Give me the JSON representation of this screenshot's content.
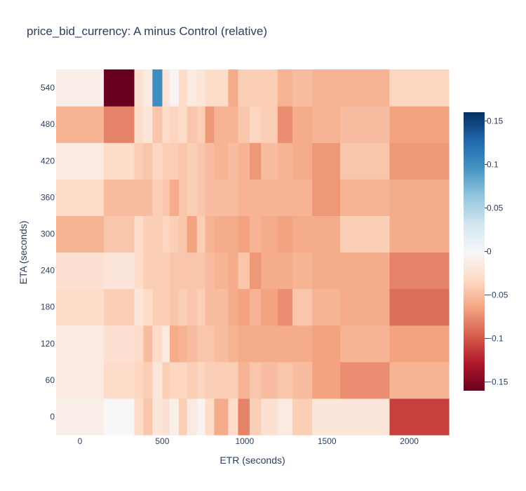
{
  "chart_data": {
    "type": "heatmap",
    "title": "price_bid_currency: A minus Control (relative)",
    "xlabel": "ETR (seconds)",
    "ylabel": "ETA (seconds)",
    "xlim": [
      -145,
      2240
    ],
    "ylim": [
      -30,
      570
    ],
    "x_ticks": [
      0,
      500,
      1000,
      1500,
      2000
    ],
    "x_tick_labels": [
      "0",
      "500",
      "1000",
      "1500",
      "2000"
    ],
    "y_ticks": [
      0,
      60,
      120,
      180,
      240,
      300,
      360,
      420,
      480,
      540
    ],
    "y_tick_labels": [
      "0",
      "60",
      "120",
      "180",
      "240",
      "300",
      "360",
      "420",
      "480",
      "540"
    ],
    "colorscale": "RdBu",
    "zmin": -0.16,
    "zmax": 0.16,
    "colorbar_ticks": [
      0.15,
      0.1,
      0.05,
      0,
      -0.05,
      -0.1,
      -0.15
    ],
    "colorbar_tick_labels": [
      "0.15",
      "0.1",
      "0.05",
      "0",
      "−0.05",
      "−0.1",
      "−0.15"
    ],
    "x_edges": [
      -145,
      145,
      330,
      385,
      440,
      500,
      545,
      600,
      650,
      710,
      760,
      815,
      900,
      960,
      1030,
      1100,
      1200,
      1290,
      1410,
      1580,
      1880,
      2240
    ],
    "y_edges": [
      -30,
      30,
      90,
      150,
      210,
      270,
      330,
      390,
      450,
      510,
      570
    ],
    "z": [
      [
        -0.01,
        0.0,
        -0.03,
        -0.045,
        -0.02,
        -0.025,
        -0.01,
        -0.04,
        -0.015,
        -0.005,
        -0.03,
        -0.06,
        -0.03,
        -0.08,
        -0.04,
        -0.025,
        -0.015,
        -0.04,
        -0.02,
        -0.02,
        -0.11
      ],
      [
        -0.015,
        -0.03,
        -0.035,
        -0.04,
        -0.02,
        -0.04,
        -0.035,
        -0.035,
        -0.04,
        -0.035,
        -0.04,
        -0.04,
        -0.04,
        -0.055,
        -0.045,
        -0.05,
        -0.045,
        -0.05,
        -0.065,
        -0.075,
        -0.055
      ],
      [
        -0.015,
        -0.025,
        -0.03,
        -0.05,
        -0.03,
        -0.015,
        -0.06,
        -0.055,
        -0.05,
        -0.045,
        -0.045,
        -0.05,
        -0.055,
        -0.06,
        -0.06,
        -0.06,
        -0.06,
        -0.06,
        -0.065,
        -0.055,
        -0.065
      ],
      [
        -0.03,
        -0.04,
        -0.02,
        -0.03,
        -0.04,
        -0.04,
        -0.045,
        -0.04,
        -0.045,
        -0.04,
        -0.05,
        -0.05,
        -0.06,
        -0.065,
        -0.055,
        -0.065,
        -0.075,
        -0.045,
        -0.055,
        -0.06,
        -0.09
      ],
      [
        -0.025,
        -0.02,
        -0.03,
        -0.04,
        -0.04,
        -0.04,
        -0.045,
        -0.045,
        -0.045,
        -0.045,
        -0.05,
        -0.055,
        -0.06,
        -0.045,
        -0.07,
        -0.06,
        -0.06,
        -0.055,
        -0.06,
        -0.06,
        -0.08
      ],
      [
        -0.055,
        -0.045,
        -0.03,
        -0.04,
        -0.04,
        -0.035,
        -0.04,
        -0.045,
        -0.065,
        -0.04,
        -0.055,
        -0.06,
        -0.06,
        -0.065,
        -0.055,
        -0.06,
        -0.065,
        -0.06,
        -0.06,
        -0.04,
        -0.06
      ],
      [
        -0.03,
        -0.05,
        -0.05,
        -0.05,
        -0.04,
        -0.045,
        -0.06,
        -0.045,
        -0.04,
        -0.045,
        -0.05,
        -0.05,
        -0.05,
        -0.055,
        -0.055,
        -0.055,
        -0.055,
        -0.055,
        -0.07,
        -0.055,
        -0.06
      ],
      [
        -0.015,
        -0.03,
        -0.04,
        -0.045,
        -0.035,
        -0.04,
        -0.04,
        -0.045,
        -0.04,
        -0.045,
        -0.05,
        -0.055,
        -0.05,
        -0.055,
        -0.07,
        -0.05,
        -0.055,
        -0.06,
        -0.07,
        -0.045,
        -0.07
      ],
      [
        -0.055,
        -0.08,
        -0.03,
        -0.02,
        -0.045,
        -0.03,
        -0.035,
        -0.03,
        -0.045,
        -0.04,
        -0.07,
        -0.055,
        -0.055,
        -0.045,
        -0.035,
        -0.04,
        -0.075,
        -0.06,
        -0.055,
        -0.05,
        -0.065
      ],
      [
        -0.01,
        -0.16,
        -0.025,
        -0.015,
        0.1,
        -0.02,
        -0.005,
        -0.03,
        -0.015,
        -0.02,
        -0.03,
        -0.03,
        -0.06,
        -0.04,
        -0.04,
        -0.04,
        -0.055,
        -0.05,
        -0.055,
        -0.055,
        -0.035
      ]
    ]
  }
}
